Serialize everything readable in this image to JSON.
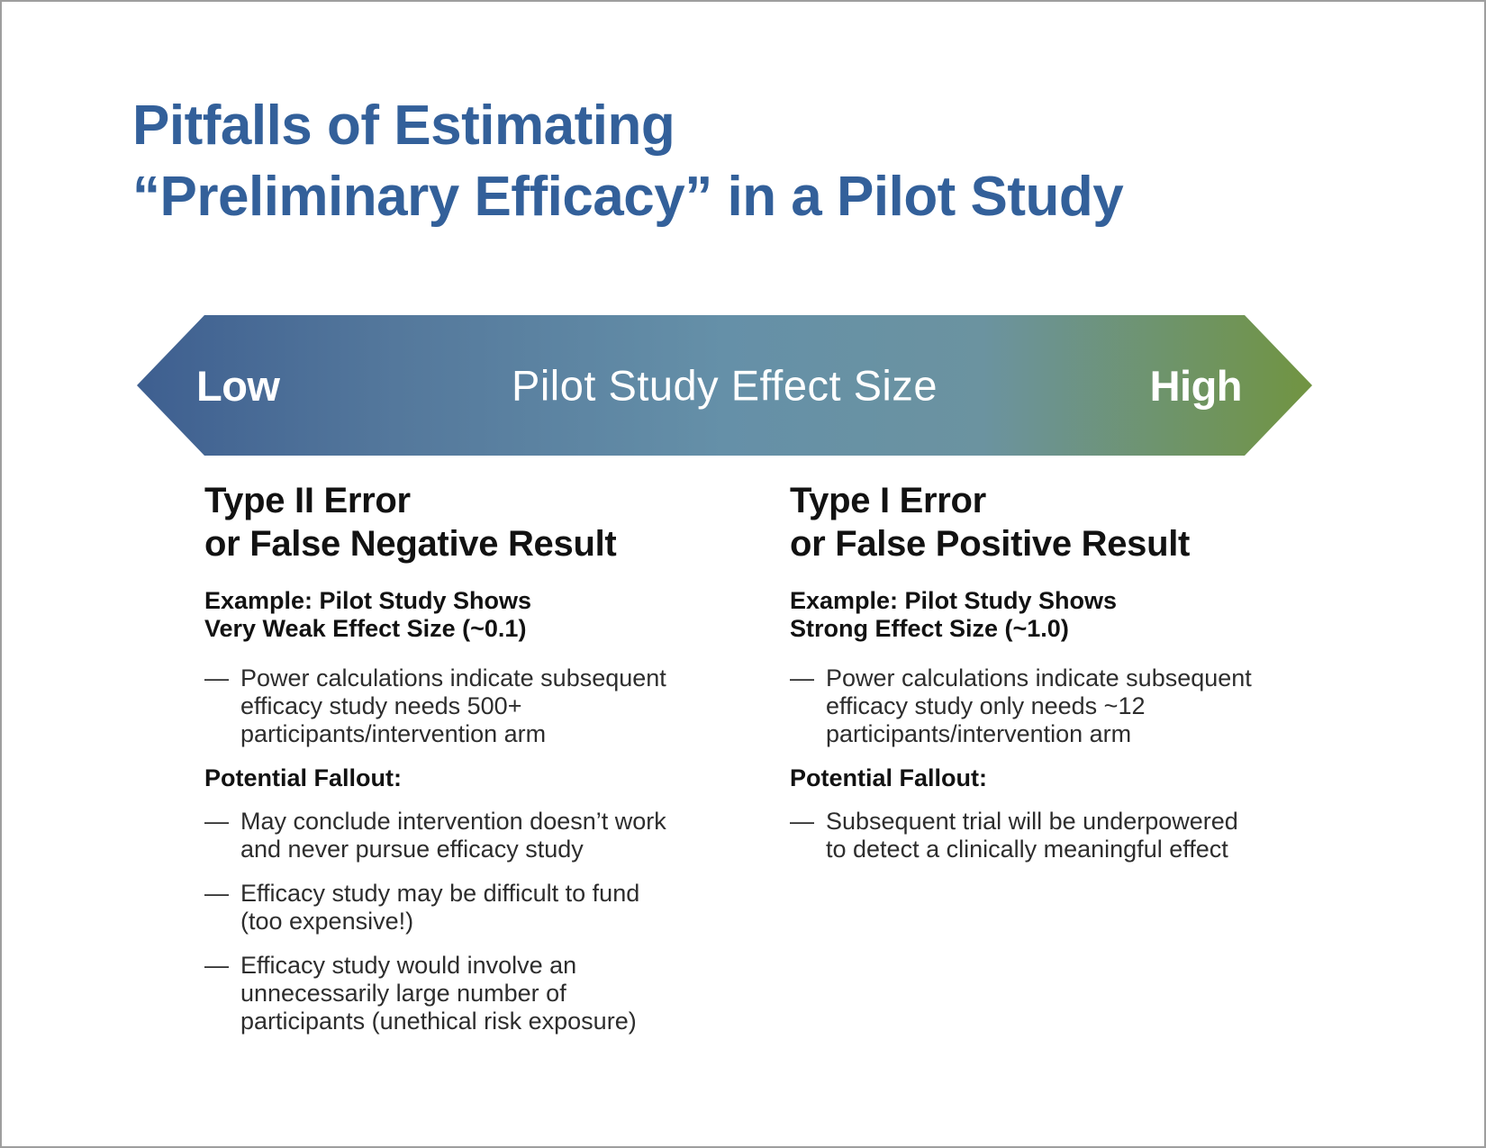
{
  "title": {
    "text": "Pitfalls of Estimating\n“Preliminary Efficacy” in a Pilot Study"
  },
  "arrow": {
    "left_label": "Low",
    "center_label": "Pilot Study Effect Size",
    "right_label": "High"
  },
  "glyphs": {
    "bullet_dash": "—"
  },
  "columns": [
    {
      "heading": "Type II Error\nor False Negative Result",
      "example": "Example: Pilot Study Shows\nVery Weak Effect Size (~0.1)",
      "example_bullets": [
        "Power calculations indicate subsequent\nefficacy study needs 500+\nparticipants/intervention arm"
      ],
      "fallout_label": "Potential Fallout:",
      "fallout_bullets": [
        "May conclude intervention doesn’t work\nand never pursue efficacy study",
        "Efficacy study may be difficult to fund\n(too expensive!)",
        "Efficacy study would involve an\nunnecessarily large number of\nparticipants (unethical risk exposure)"
      ]
    },
    {
      "heading": "Type I Error\nor False Positive Result",
      "example": "Example: Pilot Study Shows\nStrong Effect Size (~1.0)",
      "example_bullets": [
        "Power calculations indicate subsequent\nefficacy study only needs ~12\nparticipants/intervention arm"
      ],
      "fallout_label": "Potential Fallout:",
      "fallout_bullets": [
        "Subsequent trial will be underpowered\nto detect a clinically meaningful effect"
      ]
    }
  ],
  "colors": {
    "title": "#33609a",
    "arrow-gradient-start": "#3e5f90",
    "arrow-gradient-mid": "#6590a8",
    "arrow-gradient-end": "#719441",
    "arrow-text": "#ffffff",
    "heading-text": "#121212",
    "body-text": "#2d2d2d",
    "page-border": "#9e9e9e"
  }
}
